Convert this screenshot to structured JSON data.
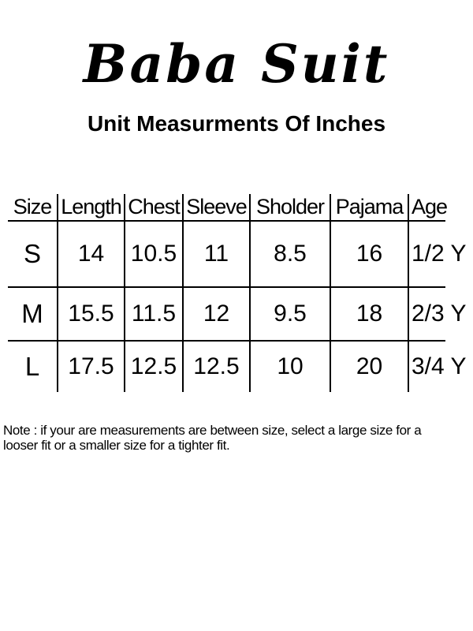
{
  "page": {
    "title": "Baba Suit",
    "subtitle": "Unit Measurments Of Inches"
  },
  "table": {
    "headers": [
      "Size",
      "Length",
      "Chest",
      "Sleeve",
      "Sholder",
      "Pajama",
      "Age"
    ],
    "rows": [
      {
        "size": "S",
        "length": "14",
        "chest": "10.5",
        "sleeve": "11",
        "sholder": "8.5",
        "pajama": "16",
        "age": "1/2 Y"
      },
      {
        "size": "M",
        "length": "15.5",
        "chest": "11.5",
        "sleeve": "12",
        "sholder": "9.5",
        "pajama": "18",
        "age": "2/3 Y"
      },
      {
        "size": "L",
        "length": "17.5",
        "chest": "12.5",
        "sleeve": "12.5",
        "sholder": "10",
        "pajama": "20",
        "age": "3/4 Y"
      }
    ]
  },
  "note": {
    "line1": "Note : if your are measurements are between size, select a large size for a",
    "line2": "looser fit or a smaller size for a tighter fit."
  },
  "colors": {
    "background": "#ffffff",
    "text": "#000000",
    "table_line": "#000000"
  }
}
